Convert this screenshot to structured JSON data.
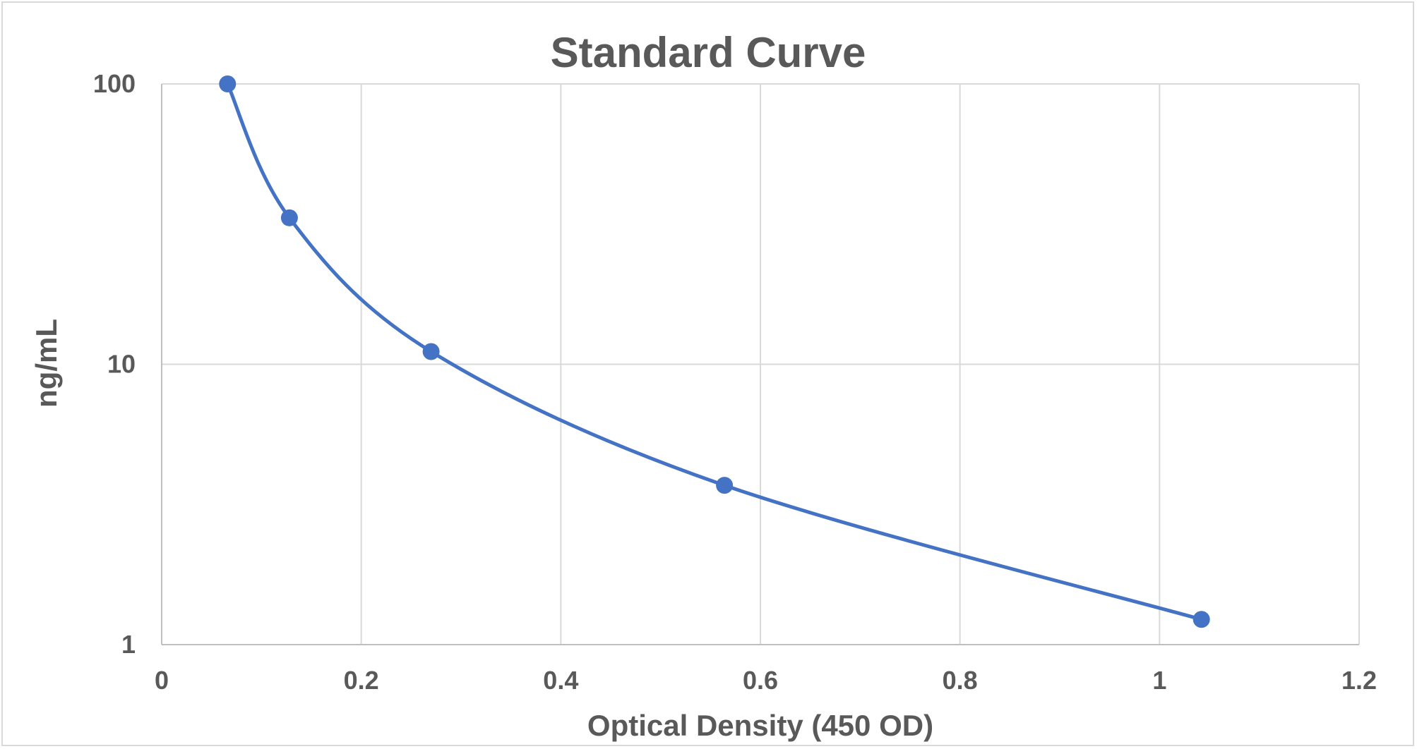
{
  "chart_data": {
    "type": "scatter",
    "title": "Standard Curve",
    "xlabel": "Optical Density (450 OD)",
    "ylabel": "ng/mL",
    "xlim": [
      0,
      1.2
    ],
    "ylim": [
      1,
      100
    ],
    "yscale": "log",
    "x_ticks": [
      "0",
      "0.2",
      "0.4",
      "0.6",
      "0.8",
      "1",
      "1.2"
    ],
    "y_ticks": [
      "1",
      "10",
      "100"
    ],
    "grid": true,
    "legend": "none",
    "smooth_line": true,
    "series": [
      {
        "color": "#4472C4",
        "points": [
          {
            "x": 0.066,
            "y": 100
          },
          {
            "x": 0.128,
            "y": 33.3
          },
          {
            "x": 0.27,
            "y": 11.1
          },
          {
            "x": 0.564,
            "y": 3.7
          },
          {
            "x": 1.042,
            "y": 1.23
          }
        ]
      }
    ]
  }
}
